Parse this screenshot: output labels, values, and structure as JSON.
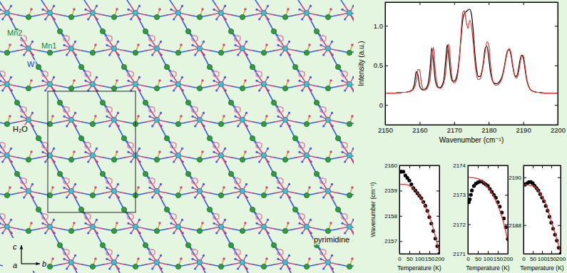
{
  "structure": {
    "labels": [
      "Mn2",
      "Mn1",
      "W",
      "H₂O",
      "pyrimidine"
    ],
    "axes": [
      "c",
      "b",
      "a"
    ]
  },
  "chart_data": [
    {
      "type": "line",
      "x_label": "Wavenumber (cm⁻¹)",
      "y_label": "Intensity (a.u.)",
      "xlim": [
        2150,
        2200
      ],
      "xticks": [
        2150,
        2160,
        2170,
        2180,
        2190,
        2200
      ],
      "ylim": [
        -0.25,
        1.3
      ],
      "yticks": [
        0,
        0.5,
        {
          "value": 1,
          "label": "1.0"
        }
      ],
      "x": [
        2150,
        2150.5,
        2151,
        2151.5,
        2152,
        2152.5,
        2153,
        2153.5,
        2154,
        2154.5,
        2155,
        2155.5,
        2156,
        2156.5,
        2157,
        2157.5,
        2158,
        2158.5,
        2159,
        2159.5,
        2160,
        2160.5,
        2161,
        2161.5,
        2162,
        2162.5,
        2163,
        2163.5,
        2164,
        2164.5,
        2165,
        2165.5,
        2166,
        2166.5,
        2167,
        2167.5,
        2168,
        2168.5,
        2169,
        2169.5,
        2170,
        2170.5,
        2171,
        2171.5,
        2172,
        2172.5,
        2173,
        2173.5,
        2174,
        2174.5,
        2175,
        2175.5,
        2176,
        2176.5,
        2177,
        2177.5,
        2178,
        2178.5,
        2179,
        2179.5,
        2180,
        2180.5,
        2181,
        2181.5,
        2182,
        2182.5,
        2183,
        2183.5,
        2184,
        2184.5,
        2185,
        2185.5,
        2186,
        2186.5,
        2187,
        2187.5,
        2188,
        2188.5,
        2189,
        2189.5,
        2190,
        2190.5,
        2191,
        2191.5,
        2192,
        2192.5,
        2193,
        2193.5,
        2194,
        2194.5,
        2195,
        2195.5,
        2196,
        2196.5,
        2197,
        2197.5,
        2198,
        2198.5,
        2199,
        2199.5,
        2200
      ],
      "series": [
        {
          "color": "#000000",
          "values": [
            0.15,
            0.15,
            0.15,
            0.15,
            0.15,
            0.15,
            0.15,
            0.155,
            0.155,
            0.155,
            0.16,
            0.16,
            0.16,
            0.165,
            0.17,
            0.18,
            0.2,
            0.27,
            0.42,
            0.38,
            0.24,
            0.2,
            0.19,
            0.2,
            0.22,
            0.28,
            0.45,
            0.72,
            0.55,
            0.32,
            0.24,
            0.22,
            0.22,
            0.25,
            0.32,
            0.55,
            0.76,
            0.6,
            0.38,
            0.3,
            0.3,
            0.33,
            0.42,
            0.6,
            0.85,
            1.08,
            1.16,
            1.18,
            1.2,
            1.21,
            1.15,
            0.95,
            0.65,
            0.45,
            0.36,
            0.36,
            0.42,
            0.55,
            0.72,
            0.74,
            0.6,
            0.42,
            0.32,
            0.28,
            0.27,
            0.27,
            0.29,
            0.32,
            0.38,
            0.48,
            0.6,
            0.69,
            0.7,
            0.62,
            0.48,
            0.38,
            0.36,
            0.42,
            0.55,
            0.63,
            0.6,
            0.46,
            0.32,
            0.24,
            0.2,
            0.18,
            0.17,
            0.165,
            0.16,
            0.16,
            0.155,
            0.155,
            0.15,
            0.15,
            0.15,
            0.15,
            0.15,
            0.15,
            0.15,
            0.15,
            0.15
          ]
        },
        {
          "color": "#e8302a",
          "values": [
            0.15,
            0.15,
            0.15,
            0.15,
            0.15,
            0.15,
            0.15,
            0.155,
            0.155,
            0.155,
            0.16,
            0.16,
            0.16,
            0.165,
            0.17,
            0.175,
            0.19,
            0.22,
            0.3,
            0.45,
            0.44,
            0.28,
            0.2,
            0.19,
            0.2,
            0.24,
            0.32,
            0.55,
            0.73,
            0.45,
            0.28,
            0.22,
            0.21,
            0.23,
            0.28,
            0.4,
            0.65,
            0.77,
            0.5,
            0.32,
            0.28,
            0.3,
            0.38,
            0.58,
            0.9,
            1.17,
            1.19,
            1.05,
            0.97,
            1.07,
            1.0,
            0.8,
            0.55,
            0.38,
            0.32,
            0.33,
            0.4,
            0.52,
            0.68,
            0.8,
            0.76,
            0.52,
            0.34,
            0.27,
            0.25,
            0.25,
            0.27,
            0.3,
            0.36,
            0.46,
            0.58,
            0.68,
            0.71,
            0.65,
            0.5,
            0.38,
            0.34,
            0.38,
            0.5,
            0.62,
            0.63,
            0.5,
            0.34,
            0.25,
            0.2,
            0.18,
            0.17,
            0.165,
            0.16,
            0.16,
            0.155,
            0.155,
            0.15,
            0.15,
            0.15,
            0.15,
            0.15,
            0.15,
            0.15,
            0.15,
            0.15
          ]
        }
      ]
    },
    {
      "type": "scatter",
      "x_label": "Temperature (K)",
      "y_label": "Wavenumber (cm⁻¹)",
      "xlim": [
        0,
        200
      ],
      "xticks": [
        0,
        50,
        100,
        150,
        200
      ],
      "ylim": [
        2156.5,
        2160
      ],
      "yticks": [
        2157,
        2158,
        2159,
        2160
      ],
      "series": [
        {
          "type": "scatter",
          "color": "#000000",
          "marker": "circle",
          "x": [
            5,
            10,
            20,
            30,
            40,
            50,
            60,
            70,
            80,
            90,
            100,
            110,
            120,
            130,
            140,
            150,
            160,
            170,
            180,
            190,
            200
          ],
          "values": [
            2159.75,
            2159.75,
            2159.75,
            2159.6,
            2159.5,
            2159.4,
            2159.25,
            2159.1,
            2159.0,
            2158.9,
            2158.8,
            2158.7,
            2158.55,
            2158.4,
            2158.2,
            2157.95,
            2157.7,
            2157.4,
            2157.1,
            2156.8,
            2156.5
          ]
        },
        {
          "type": "line",
          "color": "#e8302a",
          "x": [
            0,
            25,
            50,
            75,
            100,
            125,
            150,
            175,
            200
          ],
          "values": [
            2159.25,
            2159.25,
            2159.2,
            2159.05,
            2158.8,
            2158.45,
            2158.0,
            2157.35,
            2156.55
          ]
        }
      ]
    },
    {
      "type": "scatter",
      "x_label": "Temperature (K)",
      "xlim": [
        0,
        200
      ],
      "xticks": [
        0,
        50,
        100,
        150,
        200
      ],
      "ylim": [
        2171,
        2174
      ],
      "yticks": [
        2171,
        2172,
        2173,
        2174
      ],
      "series": [
        {
          "type": "scatter",
          "color": "#000000",
          "marker": "circle",
          "x": [
            5,
            10,
            15,
            20,
            30,
            40,
            50,
            60,
            70,
            80,
            90,
            100,
            110,
            120,
            130,
            140,
            150,
            160,
            170,
            180,
            190,
            200
          ],
          "values": [
            2172.75,
            2172.85,
            2173.0,
            2173.15,
            2173.3,
            2173.38,
            2173.42,
            2173.45,
            2173.45,
            2173.4,
            2173.35,
            2173.3,
            2173.2,
            2173.1,
            2173.0,
            2172.9,
            2172.75,
            2172.6,
            2172.4,
            2172.2,
            2171.9,
            2171.5
          ]
        },
        {
          "type": "line",
          "color": "#e8302a",
          "x": [
            0,
            50,
            75,
            100,
            125,
            150,
            175,
            200
          ],
          "values": [
            2173.6,
            2173.55,
            2173.45,
            2173.25,
            2173.0,
            2172.65,
            2172.15,
            2171.45
          ]
        }
      ]
    },
    {
      "type": "scatter",
      "x_label": "Temperature (K)",
      "xlim": [
        0,
        200
      ],
      "xticks": [
        0,
        50,
        100,
        150,
        200
      ],
      "ylim": [
        2186.8,
        2190.5
      ],
      "yticks": [
        2188,
        2190
      ],
      "series": [
        {
          "type": "scatter",
          "color": "#000000",
          "marker": "circle",
          "x": [
            5,
            10,
            20,
            30,
            40,
            50,
            60,
            70,
            80,
            90,
            100,
            110,
            120,
            130,
            140,
            150,
            160,
            170,
            180,
            190,
            200
          ],
          "values": [
            2189.7,
            2189.7,
            2189.75,
            2189.8,
            2189.8,
            2189.75,
            2189.65,
            2189.55,
            2189.45,
            2189.3,
            2189.15,
            2189.0,
            2188.8,
            2188.6,
            2188.35,
            2188.1,
            2187.85,
            2187.6,
            2187.35,
            2187.05,
            2186.8
          ]
        },
        {
          "type": "line",
          "color": "#e8302a",
          "x": [
            0,
            50,
            75,
            100,
            125,
            150,
            175,
            200
          ],
          "values": [
            2189.7,
            2189.65,
            2189.5,
            2189.2,
            2188.8,
            2188.15,
            2187.55,
            2186.85
          ]
        }
      ]
    }
  ]
}
